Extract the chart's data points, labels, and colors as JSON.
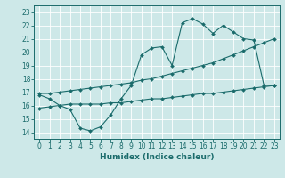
{
  "xlabel": "Humidex (Indice chaleur)",
  "bg_color": "#cde8e8",
  "line_color": "#1a6b6b",
  "grid_color": "#b0d4d4",
  "xlim": [
    -0.5,
    23.5
  ],
  "ylim": [
    13.5,
    23.5
  ],
  "xticks": [
    0,
    1,
    2,
    3,
    4,
    5,
    6,
    7,
    8,
    9,
    10,
    11,
    12,
    13,
    14,
    15,
    16,
    17,
    18,
    19,
    20,
    21,
    22,
    23
  ],
  "yticks": [
    14,
    15,
    16,
    17,
    18,
    19,
    20,
    21,
    22,
    23
  ],
  "line1_x": [
    0,
    1,
    2,
    3,
    4,
    5,
    6,
    7,
    8,
    9,
    10,
    11,
    12,
    13,
    14,
    15,
    16,
    17,
    18,
    19,
    20,
    21,
    22,
    23
  ],
  "line1_y": [
    16.8,
    16.5,
    16.0,
    15.7,
    14.3,
    14.1,
    14.4,
    15.3,
    16.5,
    17.5,
    19.8,
    20.3,
    20.4,
    19.0,
    22.2,
    22.5,
    22.1,
    21.4,
    22.0,
    21.5,
    21.0,
    20.9,
    17.5,
    17.5
  ],
  "line2_x": [
    0,
    1,
    2,
    3,
    4,
    5,
    6,
    7,
    8,
    9,
    10,
    11,
    12,
    13,
    14,
    15,
    16,
    17,
    18,
    19,
    20,
    21,
    22,
    23
  ],
  "line2_y": [
    16.9,
    16.9,
    17.0,
    17.1,
    17.2,
    17.3,
    17.4,
    17.5,
    17.6,
    17.7,
    17.9,
    18.0,
    18.2,
    18.4,
    18.6,
    18.8,
    19.0,
    19.2,
    19.5,
    19.8,
    20.1,
    20.4,
    20.7,
    21.0
  ],
  "line3_x": [
    0,
    1,
    2,
    3,
    4,
    5,
    6,
    7,
    8,
    9,
    10,
    11,
    12,
    13,
    14,
    15,
    16,
    17,
    18,
    19,
    20,
    21,
    22,
    23
  ],
  "line3_y": [
    15.8,
    15.9,
    16.0,
    16.1,
    16.1,
    16.1,
    16.1,
    16.2,
    16.2,
    16.3,
    16.4,
    16.5,
    16.5,
    16.6,
    16.7,
    16.8,
    16.9,
    16.9,
    17.0,
    17.1,
    17.2,
    17.3,
    17.4,
    17.5
  ],
  "tick_fontsize": 5.5,
  "xlabel_fontsize": 6.5,
  "marker_size": 2.0,
  "line_width": 0.8
}
